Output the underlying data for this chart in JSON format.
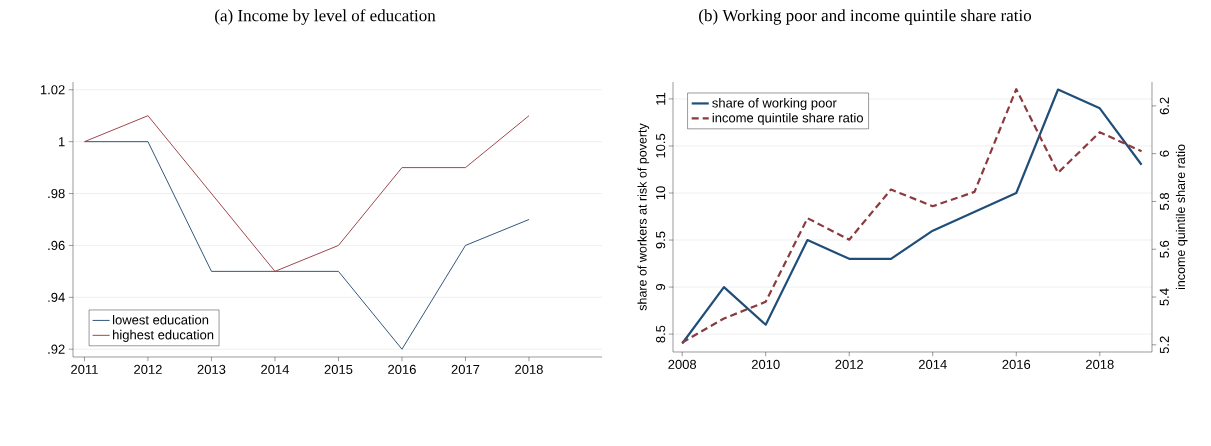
{
  "chart_data": [
    {
      "type": "line",
      "title": "(a)  Income by level of education",
      "x": [
        2011,
        2012,
        2013,
        2014,
        2015,
        2016,
        2017,
        2018
      ],
      "series": [
        {
          "name": "lowest education",
          "color": "#34567a",
          "values": [
            1,
            1,
            0.95,
            0.95,
            0.95,
            0.92,
            0.96,
            0.97
          ]
        },
        {
          "name": "highest education",
          "color": "#a0464b",
          "values": [
            1,
            1.01,
            0.98,
            0.95,
            0.96,
            0.99,
            0.99,
            1.01
          ]
        }
      ],
      "xlim": [
        2010.82,
        2019.15
      ],
      "xticks": [
        2011,
        2012,
        2013,
        2014,
        2015,
        2016,
        2017,
        2018
      ],
      "ylim": [
        0.917,
        1.023
      ],
      "yticks": [
        {
          "value": 0.92,
          "label": ".92"
        },
        {
          "value": 0.94,
          "label": ".94"
        },
        {
          "value": 0.96,
          "label": ".96"
        },
        {
          "value": 0.98,
          "label": ".98"
        },
        1,
        1.02
      ],
      "grid": "y",
      "legend": "bottom left",
      "marker": "none",
      "line_style": "solid"
    },
    {
      "type": "line",
      "title": "(b) Working poor and income quintile share ratio",
      "x": [
        2008,
        2009,
        2010,
        2011,
        2012,
        2013,
        2014,
        2015,
        2016,
        2017,
        2018,
        2019
      ],
      "ylabel": "share of workers at risk of poverty",
      "y2label": "income quintile share ratio",
      "series": [
        {
          "name": "share of working poor",
          "color": "#1f4e79",
          "line_style": "solid",
          "values": [
            8.4,
            9.0,
            8.6,
            9.5,
            9.3,
            9.3,
            9.6,
            9.8,
            10.0,
            11.1,
            10.9,
            10.3
          ]
        },
        {
          "name": "income quintile share ratio",
          "color": "#8b3a3e",
          "line_style": "dashed",
          "axis": "y2",
          "values": [
            5.21,
            5.31,
            5.38,
            5.73,
            5.64,
            5.85,
            5.78,
            5.84,
            6.27,
            5.92,
            6.09,
            6.01
          ]
        }
      ],
      "xlim": [
        2007.78,
        2019.25
      ],
      "xticks": [
        2008,
        2010,
        2012,
        2014,
        2016,
        2018
      ],
      "ylim": [
        8.31,
        11.18
      ],
      "yticks": [
        8.5,
        9,
        9.5,
        10,
        10.5,
        11
      ],
      "y2lim": [
        5.17,
        6.3
      ],
      "y2ticks": [
        5.2,
        5.4,
        5.6,
        5.8,
        6,
        6.2
      ],
      "grid": "y",
      "legend": "top left",
      "marker": "none"
    }
  ]
}
